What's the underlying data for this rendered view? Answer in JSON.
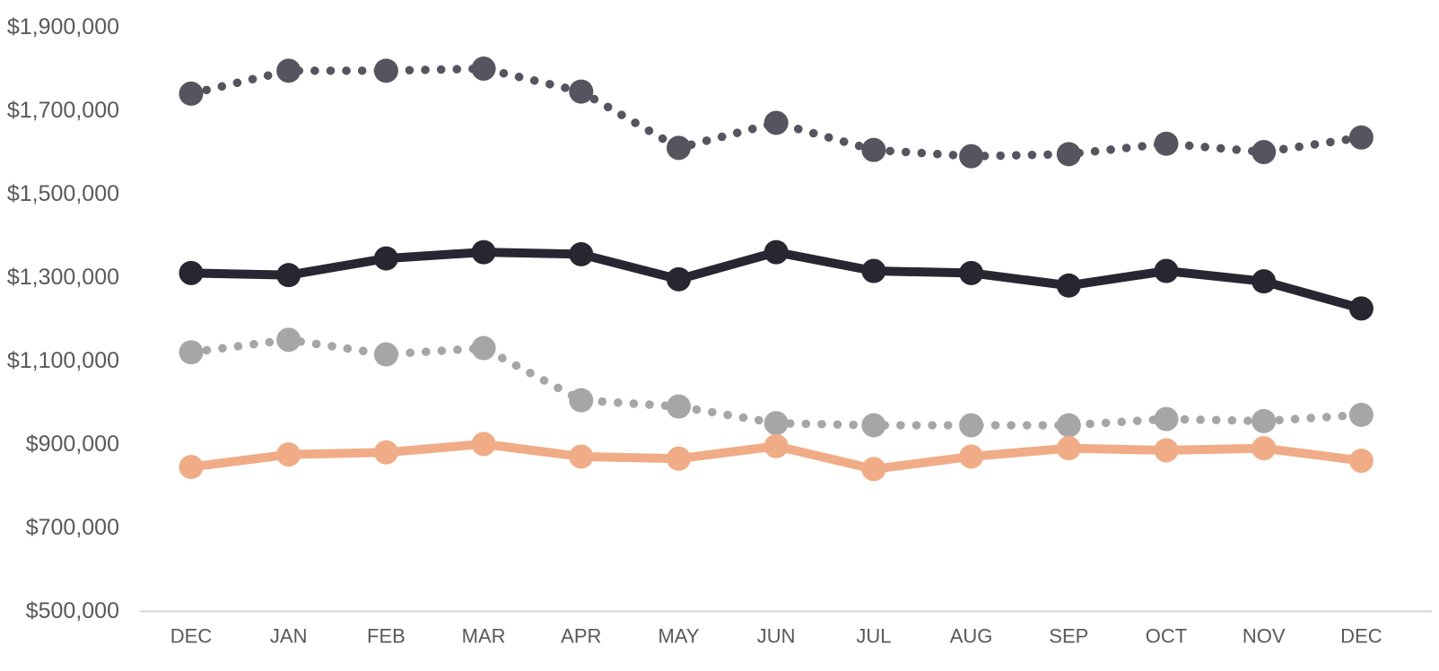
{
  "chart_data": {
    "type": "line",
    "title": "",
    "categories": [
      "DEC",
      "JAN",
      "FEB",
      "MAR",
      "APR",
      "MAY",
      "JUN",
      "JUL",
      "AUG",
      "SEP",
      "OCT",
      "NOV",
      "DEC"
    ],
    "series": [
      {
        "name": "dark-gray-dotted",
        "style": "dotted",
        "color": "#56555F",
        "values": [
          1740000,
          1795000,
          1795000,
          1800000,
          1745000,
          1610000,
          1670000,
          1605000,
          1590000,
          1595000,
          1620000,
          1600000,
          1635000
        ]
      },
      {
        "name": "black-solid",
        "style": "solid",
        "color": "#282731",
        "values": [
          1310000,
          1305000,
          1345000,
          1360000,
          1355000,
          1295000,
          1360000,
          1315000,
          1310000,
          1280000,
          1315000,
          1290000,
          1225000
        ]
      },
      {
        "name": "light-gray-dotted",
        "style": "dotted",
        "color": "#A7A6A6",
        "values": [
          1120000,
          1150000,
          1115000,
          1130000,
          1005000,
          990000,
          950000,
          945000,
          945000,
          945000,
          960000,
          955000,
          970000
        ]
      },
      {
        "name": "orange-solid",
        "style": "solid",
        "color": "#F0AC86",
        "values": [
          845000,
          875000,
          880000,
          900000,
          870000,
          865000,
          895000,
          840000,
          870000,
          890000,
          885000,
          890000,
          860000
        ]
      }
    ],
    "y_axis": {
      "tick_labels": [
        "$1,900,000",
        "$1,700,000",
        "$1,500,000",
        "$1,300,000",
        "$1,100,000",
        "$900,000",
        "$700,000",
        "$500,000"
      ],
      "tick_values": [
        1900000,
        1700000,
        1500000,
        1300000,
        1100000,
        900000,
        700000,
        500000
      ],
      "min": 500000,
      "max": 1900000,
      "step": 200000
    },
    "grid": false,
    "legend": false,
    "colors": {
      "text": "#595959",
      "axis_line": "#D6D6D6",
      "background": "#FFFFFF"
    }
  }
}
